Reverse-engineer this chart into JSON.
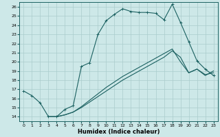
{
  "xlabel": "Humidex (Indice chaleur)",
  "xlim": [
    -0.5,
    23.5
  ],
  "ylim": [
    13.5,
    26.5
  ],
  "yticks": [
    14,
    15,
    16,
    17,
    18,
    19,
    20,
    21,
    22,
    23,
    24,
    25,
    26
  ],
  "xticks": [
    0,
    1,
    2,
    3,
    4,
    5,
    6,
    7,
    8,
    9,
    10,
    11,
    12,
    13,
    14,
    15,
    16,
    17,
    18,
    19,
    20,
    21,
    22,
    23
  ],
  "bg_color": "#cde8e8",
  "grid_color": "#aacccc",
  "line_color": "#1a6060",
  "line1_x": [
    0,
    1,
    2,
    3,
    4,
    5,
    6,
    7,
    8,
    9,
    10,
    11,
    12,
    13,
    14,
    15,
    16,
    17,
    18,
    19,
    20,
    21,
    22,
    23
  ],
  "line1_y": [
    16.8,
    16.3,
    15.5,
    14.0,
    14.0,
    14.8,
    15.2,
    19.5,
    19.9,
    23.0,
    24.5,
    25.2,
    25.8,
    25.5,
    25.4,
    25.4,
    25.3,
    24.6,
    26.3,
    24.3,
    22.2,
    20.1,
    19.2,
    18.5
  ],
  "line2_x": [
    3,
    4,
    5,
    6,
    7,
    8,
    9,
    10,
    11,
    12,
    13,
    14,
    15,
    16,
    17,
    18,
    19,
    20,
    21,
    22,
    23
  ],
  "line2_y": [
    14.0,
    14.0,
    14.2,
    14.5,
    15.0,
    15.6,
    16.2,
    16.8,
    17.4,
    18.0,
    18.5,
    19.0,
    19.5,
    20.0,
    20.5,
    21.2,
    20.5,
    18.8,
    19.2,
    18.5,
    19.0
  ],
  "line3_x": [
    3,
    4,
    5,
    6,
    7,
    8,
    9,
    10,
    11,
    12,
    13,
    14,
    15,
    16,
    17,
    18,
    19,
    20,
    21,
    22,
    23
  ],
  "line3_y": [
    14.0,
    14.0,
    14.2,
    14.5,
    15.1,
    15.8,
    16.5,
    17.2,
    17.8,
    18.4,
    18.9,
    19.4,
    19.9,
    20.4,
    20.9,
    21.4,
    20.0,
    18.8,
    19.2,
    18.6,
    18.8
  ],
  "marker_x": [
    0,
    1,
    2,
    3,
    4,
    5,
    6,
    7,
    8,
    9,
    10,
    11,
    12,
    13,
    14,
    15,
    16,
    17,
    18,
    19,
    20,
    21,
    22,
    23
  ],
  "marker_y": [
    16.8,
    16.3,
    15.5,
    14.0,
    14.0,
    14.8,
    15.2,
    19.5,
    19.9,
    23.0,
    24.5,
    25.2,
    25.8,
    25.5,
    25.4,
    25.4,
    25.3,
    24.6,
    26.3,
    24.3,
    22.2,
    20.1,
    19.2,
    18.5
  ]
}
